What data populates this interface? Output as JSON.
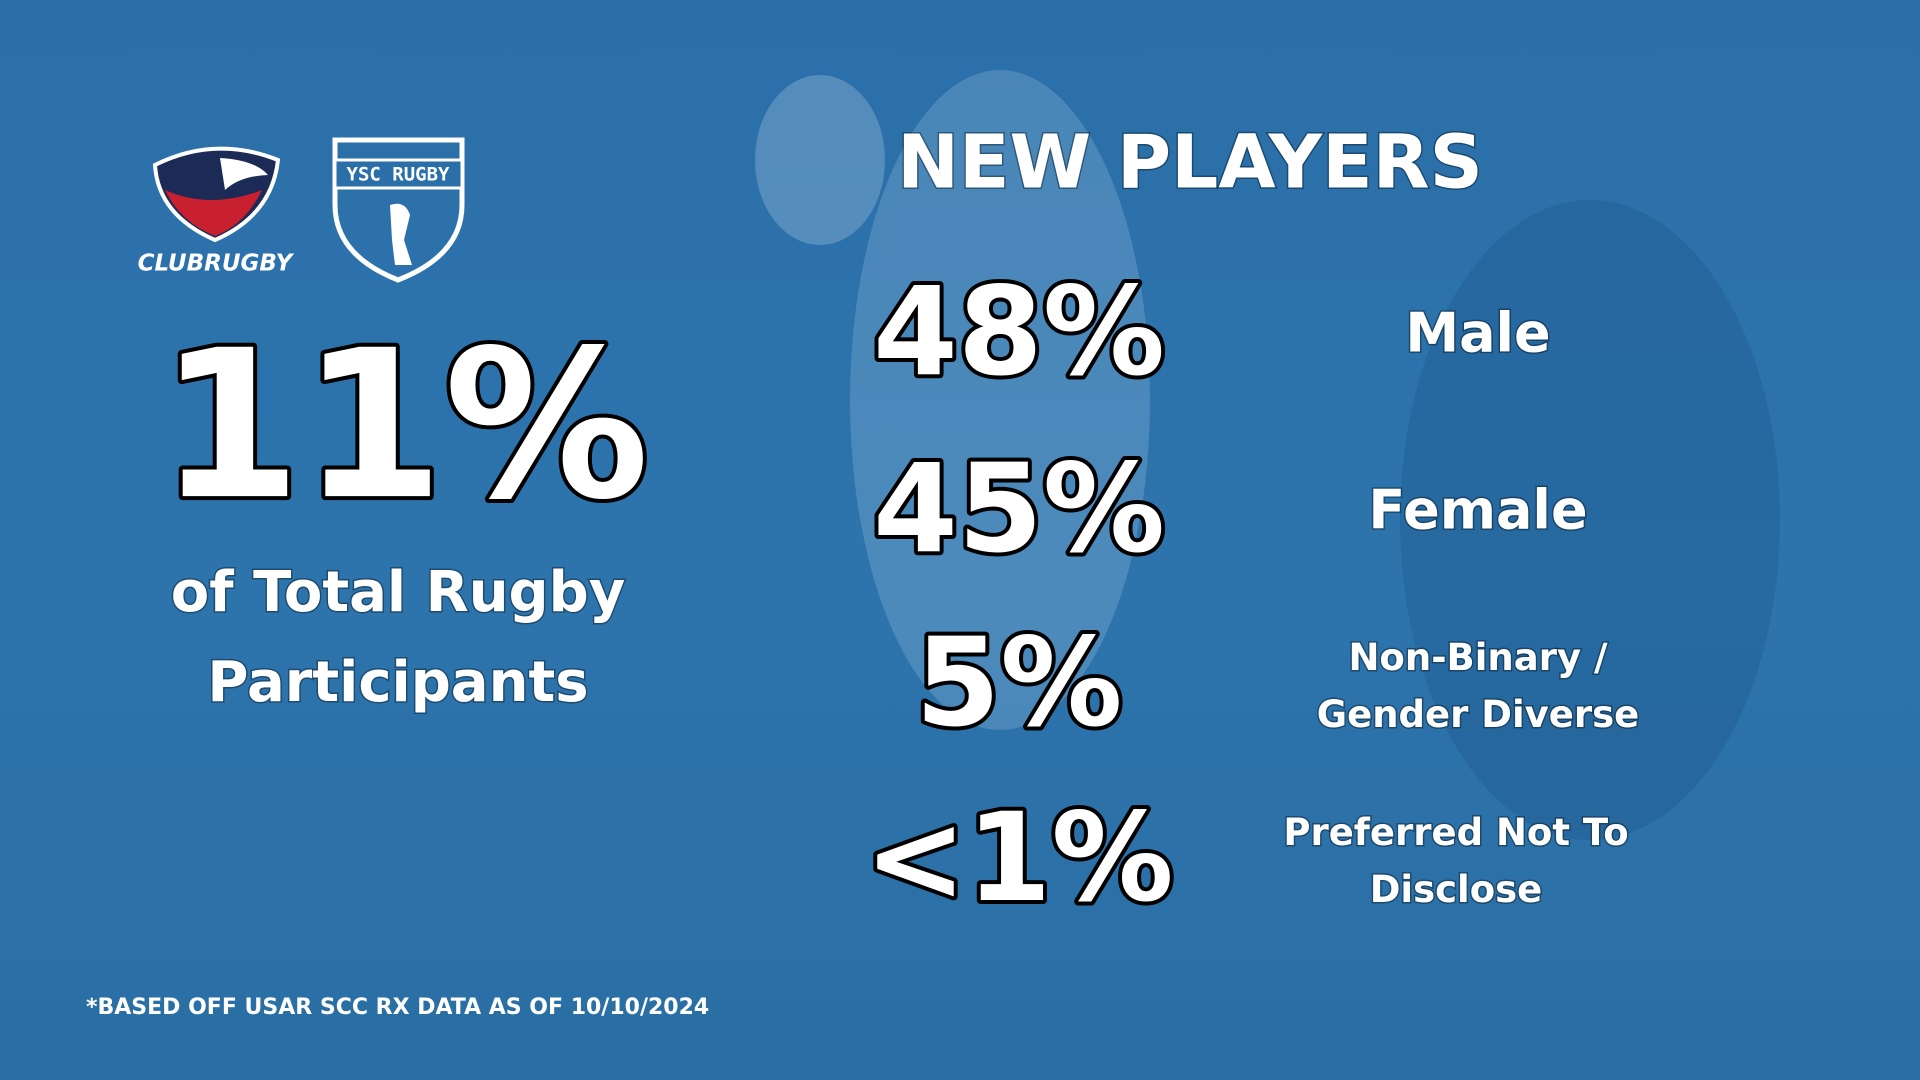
{
  "logos": {
    "club_rugby": "CLUBRUGBY",
    "ysc_rugby": "YSC RUGBY"
  },
  "highlight": {
    "value": "11%",
    "caption_lines": [
      "of Total Rugby",
      "Participants"
    ]
  },
  "new_players": {
    "title": "NEW PLAYERS",
    "rows": [
      {
        "value": "48%",
        "label_lines": [
          "Male"
        ]
      },
      {
        "value": "45%",
        "label_lines": [
          "Female"
        ]
      },
      {
        "value": "5%",
        "label_lines": [
          "Non-Binary /",
          "Gender Diverse"
        ]
      },
      {
        "value": "<1%",
        "label_lines": [
          "Preferred Not To",
          "Disclose"
        ]
      }
    ]
  },
  "footnote": "*BASED OFF USAR SCC RX DATA AS OF 10/10/2024"
}
